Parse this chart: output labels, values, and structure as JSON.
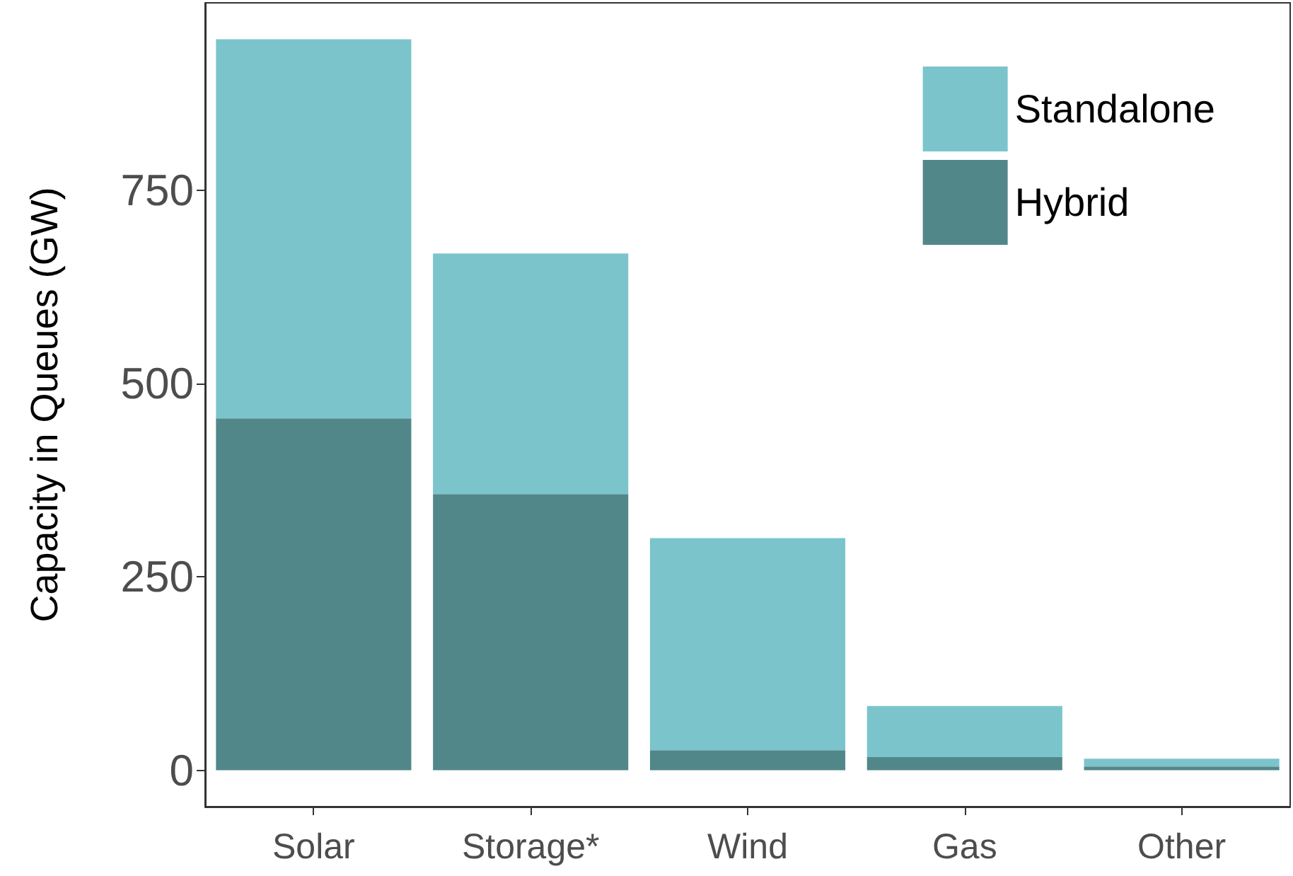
{
  "chart_data": {
    "type": "bar",
    "stacked": true,
    "ylabel": "Capacity in Queues (GW)",
    "categories": [
      "Solar",
      "Storage*",
      "Wind",
      "Gas",
      "Other"
    ],
    "series": [
      {
        "name": "Hybrid",
        "color": "#52878a",
        "values": [
          455,
          357,
          26,
          17,
          5
        ]
      },
      {
        "name": "Standalone",
        "color": "#7bc4cc",
        "values": [
          490,
          311,
          274,
          66,
          10
        ]
      }
    ],
    "ylim": [
      -47,
      992
    ],
    "yticks": [
      0,
      250,
      500,
      750
    ],
    "grid": false,
    "legend": "top right"
  }
}
